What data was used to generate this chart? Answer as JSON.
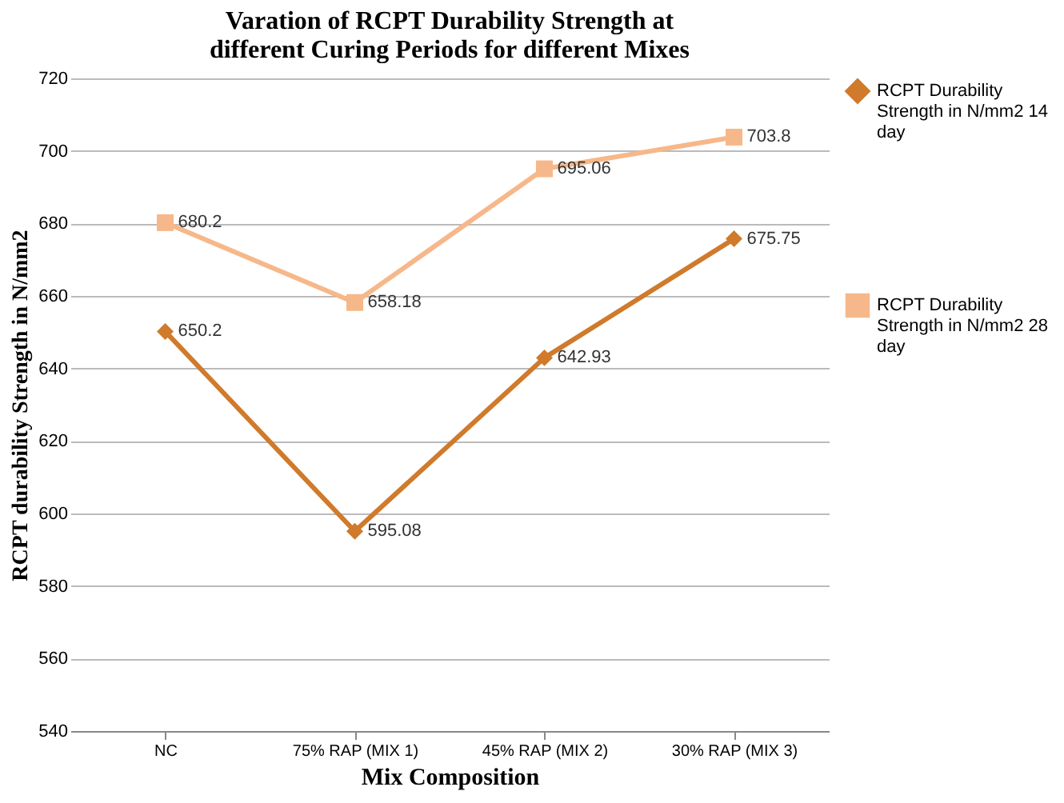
{
  "chart_data": {
    "type": "line",
    "title": [
      "Varation of RCPT Durability Strength at",
      "different Curing Periods for different Mixes"
    ],
    "xlabel": "Mix Composition",
    "ylabel": "RCPT durability Strength in N/mm2",
    "categories": [
      "NC",
      "75% RAP (MIX 1)",
      "45% RAP (MIX 2)",
      "30% RAP (MIX 3)"
    ],
    "series": [
      {
        "name": "RCPT Durability Strength in N/mm2 14 day",
        "color": "#d07a2c",
        "marker": "diamond",
        "values": [
          650.2,
          595.08,
          642.93,
          675.75
        ]
      },
      {
        "name": "RCPT Durability Strength in N/mm2 28 day",
        "color": "#f6b88a",
        "marker": "square",
        "values": [
          680.2,
          658.18,
          695.06,
          703.8
        ]
      }
    ],
    "ylim": [
      540,
      720
    ],
    "yticks": [
      540,
      560,
      580,
      600,
      620,
      640,
      660,
      680,
      700,
      720
    ],
    "grid": "y",
    "legend": "right",
    "data_labels": true,
    "line_style": "solid"
  }
}
